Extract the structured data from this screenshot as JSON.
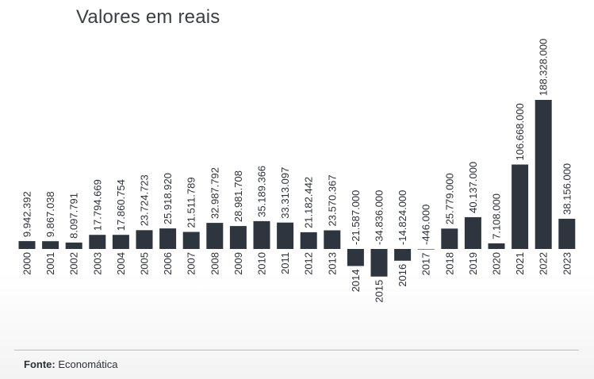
{
  "chart_data": {
    "type": "bar",
    "title": "Valores em reais",
    "xlabel": "",
    "ylabel": "",
    "categories": [
      "2000",
      "2001",
      "2002",
      "2003",
      "2004",
      "2005",
      "2006",
      "2007",
      "2008",
      "2009",
      "2010",
      "2011",
      "2012",
      "2013",
      "2014",
      "2015",
      "2016",
      "2017",
      "2018",
      "2019",
      "2020",
      "2021",
      "2022",
      "2023"
    ],
    "values": [
      9942392,
      9867038,
      8097791,
      17794669,
      17860754,
      23724723,
      25918920,
      21511789,
      32987792,
      28981708,
      35189366,
      33313097,
      21182442,
      23570367,
      -21587000,
      -34836000,
      -14824000,
      -446000,
      25779000,
      40137000,
      7108000,
      106668000,
      188328000,
      38156000
    ],
    "value_labels": [
      "9.942.392",
      "9.867.038",
      "8.097.791",
      "17.794.669",
      "17.860.754",
      "23.724.723",
      "25.918.920",
      "21.511.789",
      "32.987.792",
      "28.981.708",
      "35.189.366",
      "33.313.097",
      "21.182.442",
      "23.570.367",
      "-21.587.000",
      "-34.836.000",
      "-14.824.000",
      "-446.000",
      "25.779.000",
      "40.137.000",
      "7.108.000",
      "106.668.000",
      "188.328.000",
      "38.156.000"
    ],
    "ylim": [
      -40000000,
      200000000
    ],
    "bar_color": "#2e353f",
    "grid": false,
    "legend": "none"
  },
  "source": {
    "label": "Fonte:",
    "value": "Economática"
  }
}
